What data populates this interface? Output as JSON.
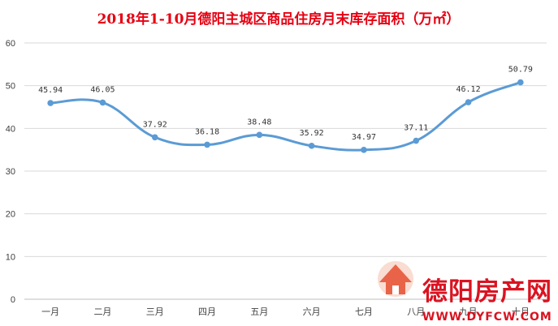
{
  "chart_data": {
    "type": "line",
    "title": "2018年1-10月德阳主城区商品住房月末库存面积（万㎡）",
    "categories": [
      "一月",
      "二月",
      "三月",
      "四月",
      "五月",
      "六月",
      "七月",
      "八月",
      "九月",
      "十月"
    ],
    "series": [
      {
        "values": [
          45.94,
          46.05,
          37.92,
          36.18,
          38.48,
          35.92,
          34.97,
          37.11,
          46.12,
          50.79
        ]
      }
    ],
    "ylim": [
      0,
      60
    ],
    "yticks": [
      0,
      10,
      20,
      30,
      40,
      50,
      60
    ],
    "grid": true,
    "legend": "none",
    "data_labels": [
      "45.94",
      "46.05",
      "37.92",
      "36.18",
      "38.48",
      "35.92",
      "34.97",
      "37.11",
      "46.12",
      "50.79"
    ],
    "colors": {
      "line": "#5b9bd5",
      "title": "#e60012",
      "grid": "#d9d9d9"
    }
  },
  "watermark": {
    "name": "德阳房产网",
    "url": "WWW.DYFCW.COM",
    "colors": {
      "brand": "#d7000f"
    }
  }
}
